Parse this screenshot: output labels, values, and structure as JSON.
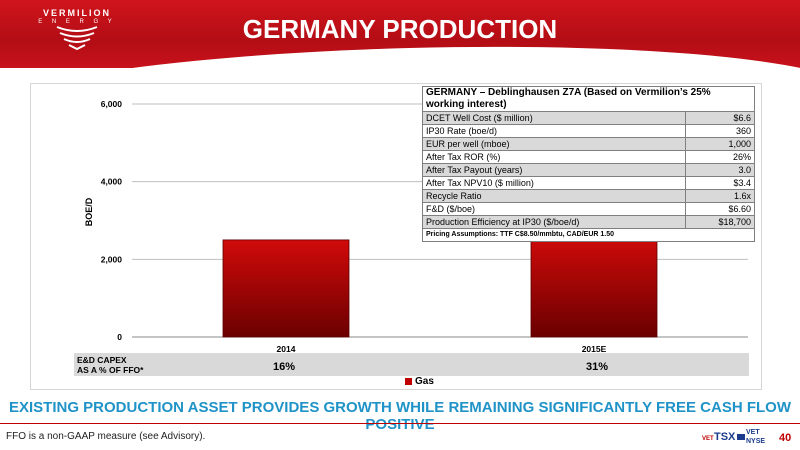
{
  "header": {
    "logo_name": "VERMILION",
    "logo_sub": "E N E R G Y",
    "title": "GERMANY PRODUCTION"
  },
  "chart_data": {
    "type": "bar",
    "categories": [
      "2014",
      "2015E"
    ],
    "series": [
      {
        "name": "Gas",
        "values": [
          2500,
          2630
        ],
        "color": "#c00000"
      }
    ],
    "ylabel": "BOE/D",
    "ylim": [
      0,
      6000
    ],
    "yticks": [
      "0",
      "2,000",
      "4,000",
      "6,000"
    ],
    "ytick_values": [
      0,
      2000,
      4000,
      6000
    ],
    "legend_position": "bottom-center",
    "grid": true
  },
  "table": {
    "title": "GERMANY – Deblinghausen Z7A (Based on Vermilion’s 25% working interest)",
    "rows": [
      {
        "label": "DCET Well Cost ($ million)",
        "value": "$6.6"
      },
      {
        "label": "IP30 Rate (boe/d)",
        "value": "360"
      },
      {
        "label": "EUR per well (mboe)",
        "value": "1,000"
      },
      {
        "label": "After Tax ROR (%)",
        "value": "26%"
      },
      {
        "label": "After Tax Payout (years)",
        "value": "3.0"
      },
      {
        "label": "After Tax NPV10 ($ million)",
        "value": "$3.4"
      },
      {
        "label": "Recycle Ratio",
        "value": "1.6x"
      },
      {
        "label": "F&D ($/boe)",
        "value": "$6.60"
      },
      {
        "label": "Production Efficiency at IP30 ($/boe/d)",
        "value": "$18,700"
      }
    ],
    "footnote": "Pricing Assumptions: TTF C$8.50/mmbtu, CAD/EUR 1.50"
  },
  "capex": {
    "label_line1": "E&D CAPEX",
    "label_line2": "AS A % OF FFO*",
    "values": [
      "16%",
      "31%"
    ]
  },
  "legend": {
    "gas": "Gas"
  },
  "tagline": "EXISTING PRODUCTION ASSET PROVIDES GROWTH WHILE REMAINING SIGNIFICANTLY FREE CASH FLOW POSITIVE",
  "footnote": "FFO is a non-GAAP measure (see Advisory).",
  "exchange": {
    "vet": "VET",
    "tsx": "TSX",
    "vet2": "VET",
    "nyse": "NYSE"
  },
  "page_number": "40"
}
